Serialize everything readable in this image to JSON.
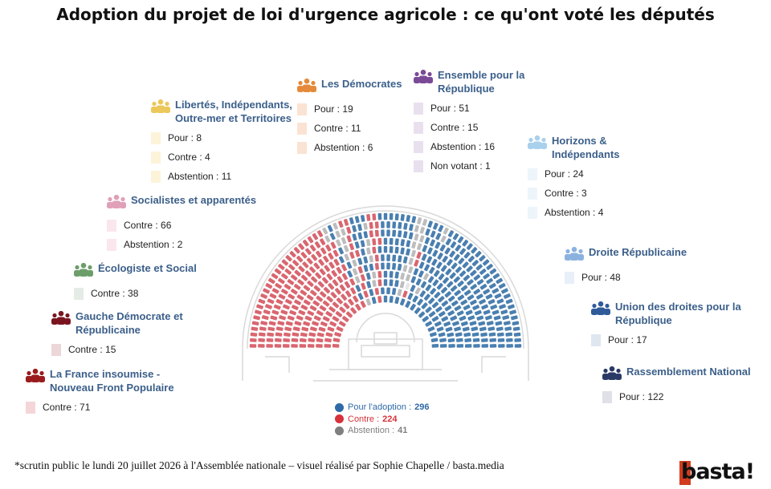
{
  "title": "Adoption du projet de loi d'urgence agricole : ce qu'ont voté les députés",
  "footnote": "*scrutin public le lundi 20 juillet 2026 à l'Assemblée nationale – visuel réalisé par Sophie Chapelle / basta.media",
  "logo": "basta!",
  "colors": {
    "pour": "#4a7fb0",
    "contre": "#d9666f",
    "abstention": "#bdbdbd",
    "non_votant": "#e6e6e6"
  },
  "legend": [
    {
      "label": "Pour l'adoption :",
      "value": "296",
      "color": "#2f6aa8"
    },
    {
      "label": "Contre :",
      "value": "224",
      "color": "#d6323b"
    },
    {
      "label": "Abstention :",
      "value": "41",
      "color": "#7f7f7f"
    }
  ],
  "groups": [
    {
      "id": "lfi",
      "name": "La France insoumise - Nouveau Front Populaire",
      "color": "#9a1c1c",
      "icon": "people-icon",
      "stats": [
        {
          "label": "Contre : 71",
          "swatch": "#f5d6d8"
        }
      ]
    },
    {
      "id": "gdr",
      "name": "Gauche Démocrate et Républicaine",
      "color": "#7a1520",
      "icon": "people-icon",
      "stats": [
        {
          "label": "Contre : 15",
          "swatch": "#ecd6d8"
        }
      ]
    },
    {
      "id": "ecolo",
      "name": "Écologiste et Social",
      "color": "#6d9e6a",
      "icon": "people-icon",
      "stats": [
        {
          "label": "Contre : 38",
          "swatch": "#e5ebe5"
        }
      ]
    },
    {
      "id": "soc",
      "name": "Socialistes et apparentés",
      "color": "#e0a0b8",
      "icon": "people-icon",
      "stats": [
        {
          "label": "Contre : 66",
          "swatch": "#fbe6ee"
        },
        {
          "label": "Abstention : 2",
          "swatch": "#fbe6ee"
        }
      ]
    },
    {
      "id": "liot",
      "name": "Libertés, Indépendants, Outre-mer et Territoires",
      "color": "#ecc75a",
      "icon": "people-icon",
      "stats": [
        {
          "label": "Pour : 8",
          "swatch": "#fcf3d9"
        },
        {
          "label": "Contre : 4",
          "swatch": "#fcf3d9"
        },
        {
          "label": "Abstention : 11",
          "swatch": "#fcf3d9"
        }
      ]
    },
    {
      "id": "dem",
      "name": "Les Démocrates",
      "color": "#e58a3a",
      "icon": "people-icon",
      "stats": [
        {
          "label": "Pour : 19",
          "swatch": "#fbe3d3"
        },
        {
          "label": "Contre : 11",
          "swatch": "#fbe3d3"
        },
        {
          "label": "Abstention : 6",
          "swatch": "#fbe3d3"
        }
      ]
    },
    {
      "id": "epr",
      "name": "Ensemble pour la République",
      "color": "#7b4a96",
      "icon": "people-icon",
      "stats": [
        {
          "label": "Pour : 51",
          "swatch": "#e9e0ef"
        },
        {
          "label": "Contre : 15",
          "swatch": "#e9e0ef"
        },
        {
          "label": "Abstention : 16",
          "swatch": "#e9e0ef"
        },
        {
          "label": "Non votant : 1",
          "swatch": "#e9e0ef"
        }
      ]
    },
    {
      "id": "hor",
      "name": "Horizons & Indépendants",
      "color": "#a9d0ec",
      "icon": "people-icon",
      "stats": [
        {
          "label": "Pour : 24",
          "swatch": "#edf5fb"
        },
        {
          "label": "Contre : 3",
          "swatch": "#edf5fb"
        },
        {
          "label": "Abstention : 4",
          "swatch": "#edf5fb"
        }
      ]
    },
    {
      "id": "dr",
      "name": "Droite Républicaine",
      "color": "#8bb2df",
      "icon": "people-icon",
      "stats": [
        {
          "label": "Pour : 48",
          "swatch": "#e8eff8"
        }
      ]
    },
    {
      "id": "udr",
      "name": "Union des droites pour la République",
      "color": "#2f5b9a",
      "icon": "people-icon",
      "stats": [
        {
          "label": "Pour : 17",
          "swatch": "#dfe6f0"
        }
      ]
    },
    {
      "id": "rn",
      "name": "Rassemblement National",
      "color": "#2a3a66",
      "icon": "people-icon",
      "stats": [
        {
          "label": "Pour : 122",
          "swatch": "#dfe1e7"
        }
      ]
    }
  ],
  "chart_data": {
    "type": "hemicycle",
    "categories": [
      "La France insoumise - Nouveau Front Populaire",
      "Gauche Démocrate et Républicaine",
      "Écologiste et Social",
      "Socialistes et apparentés",
      "Libertés, Indépendants, Outre-mer et Territoires",
      "Les Démocrates",
      "Ensemble pour la République",
      "Horizons & Indépendants",
      "Droite Républicaine",
      "Union des droites pour la République",
      "Rassemblement National"
    ],
    "series": [
      {
        "name": "Pour l'adoption",
        "values": [
          0,
          0,
          0,
          0,
          8,
          19,
          51,
          24,
          48,
          17,
          122
        ]
      },
      {
        "name": "Contre",
        "values": [
          71,
          15,
          38,
          66,
          4,
          11,
          15,
          3,
          0,
          0,
          0
        ]
      },
      {
        "name": "Abstention",
        "values": [
          0,
          0,
          0,
          2,
          11,
          6,
          16,
          4,
          0,
          0,
          0
        ]
      },
      {
        "name": "Non votant",
        "values": [
          0,
          0,
          0,
          0,
          0,
          0,
          1,
          0,
          0,
          0,
          0
        ]
      }
    ],
    "totals": {
      "Pour l'adoption": 296,
      "Contre": 224,
      "Abstention": 41
    }
  }
}
